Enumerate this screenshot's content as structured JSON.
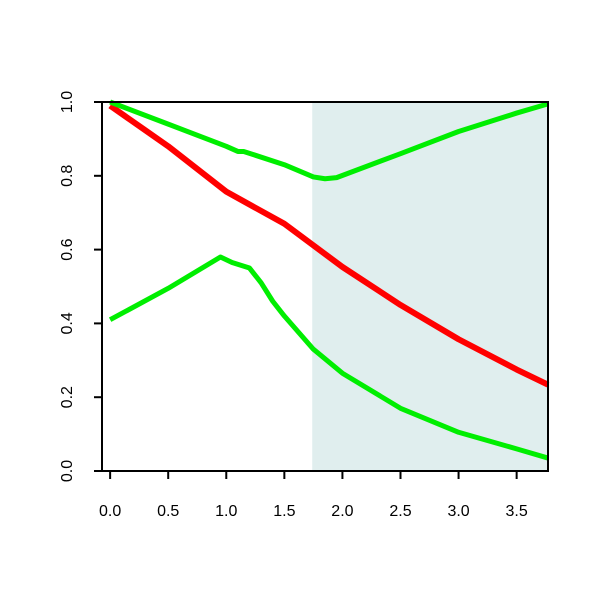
{
  "chart_data": {
    "type": "line",
    "xlim": [
      -0.07,
      3.77
    ],
    "ylim": [
      0,
      1.0
    ],
    "xticks": [
      {
        "value": 0,
        "label": "0.0"
      },
      0.5,
      {
        "value": 1,
        "label": "1.0"
      },
      1.5,
      {
        "value": 2,
        "label": "2.0"
      },
      2.5,
      {
        "value": 3,
        "label": "3.0"
      },
      3.5
    ],
    "yticks": [
      {
        "value": 0,
        "label": "0.0"
      },
      0.2,
      0.4,
      0.6,
      0.8,
      {
        "value": 1,
        "label": "1.0"
      }
    ],
    "shaded_region": {
      "xmin": 1.74,
      "color": "#E0EEEE"
    },
    "series": [
      {
        "color": "#ff0000",
        "width": 6,
        "x": [
          0,
          0.5,
          1.0,
          1.5,
          2.0,
          2.5,
          3.0,
          3.5,
          3.77
        ],
        "values": [
          0.99,
          0.88,
          0.757,
          0.67,
          0.553,
          0.45,
          0.357,
          0.275,
          0.234
        ]
      },
      {
        "color": "#00ee00",
        "width": 5,
        "x": [
          0,
          0.5,
          1.0,
          1.1,
          1.15,
          1.5,
          1.75,
          1.85,
          1.95,
          2.5,
          3.0,
          3.5,
          3.77
        ],
        "values": [
          1.0,
          0.94,
          0.88,
          0.866,
          0.866,
          0.83,
          0.797,
          0.792,
          0.795,
          0.86,
          0.92,
          0.97,
          0.995
        ]
      },
      {
        "color": "#00ee00",
        "width": 5,
        "x": [
          0,
          0.5,
          0.95,
          1.05,
          1.2,
          1.3,
          1.4,
          1.5,
          1.75,
          2.0,
          2.5,
          3.0,
          3.5,
          3.77
        ],
        "values": [
          0.41,
          0.495,
          0.58,
          0.565,
          0.55,
          0.51,
          0.46,
          0.42,
          0.33,
          0.265,
          0.17,
          0.105,
          0.06,
          0.035
        ]
      }
    ]
  }
}
